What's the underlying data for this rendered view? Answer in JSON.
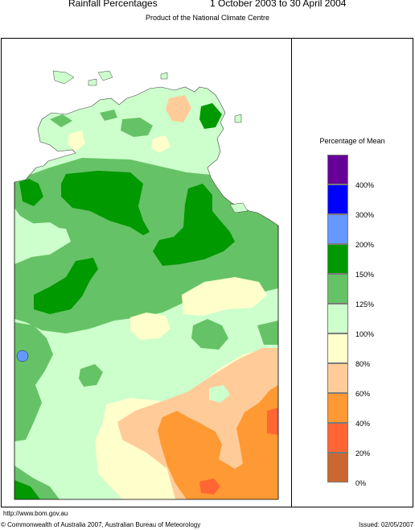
{
  "header": {
    "title": "Rainfall Percentages",
    "period": "1 October 2003 to 30 April 2004",
    "subtitle": "Product of the National Climate Centre"
  },
  "legend": {
    "title": "Percentage of Mean",
    "classes": [
      {
        "label": "400%",
        "color": "#660099"
      },
      {
        "label": "300%",
        "color": "#0000ff"
      },
      {
        "label": "200%",
        "color": "#6699ff"
      },
      {
        "label": "150%",
        "color": "#009900"
      },
      {
        "label": "125%",
        "color": "#66c266"
      },
      {
        "label": "100%",
        "color": "#ccffcc"
      },
      {
        "label": "80%",
        "color": "#ffffcc"
      },
      {
        "label": "60%",
        "color": "#ffcc99"
      },
      {
        "label": "40%",
        "color": "#ff9933"
      },
      {
        "label": "20%",
        "color": "#ff6633"
      },
      {
        "label": "0%",
        "color": "#cc6633"
      }
    ]
  },
  "footer": {
    "url": "http://www.bom.gov.au",
    "copyright": "© Commonwealth of Australia 2007, Australian Bureau of Meteorology",
    "issued": "Issued: 02/05/2007"
  }
}
